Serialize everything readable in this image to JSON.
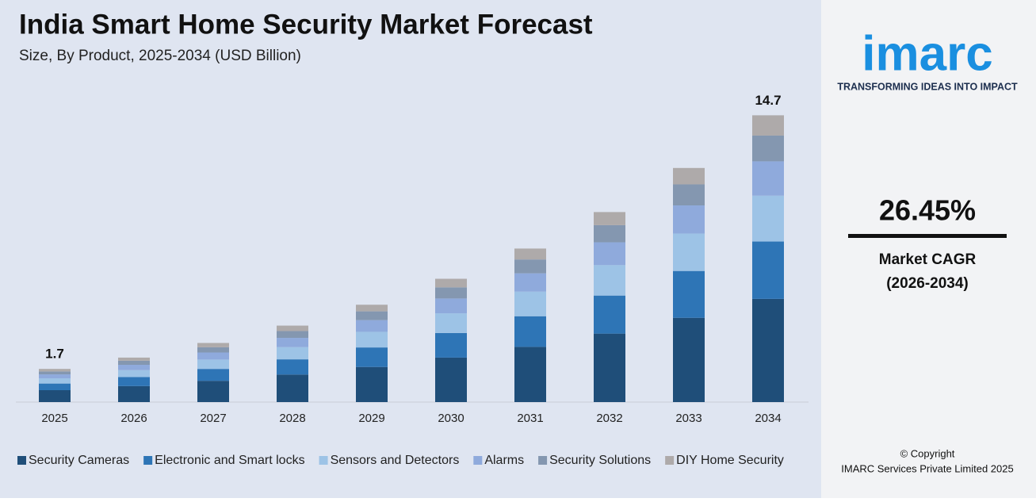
{
  "chart_data": {
    "type": "stacked_bar",
    "title": "India Smart Home Security Market Forecast",
    "subtitle": "Size, By Product, 2025-2034 (USD Billion)",
    "categories": [
      "2025",
      "2026",
      "2027",
      "2028",
      "2029",
      "2030",
      "2031",
      "2032",
      "2033",
      "2034"
    ],
    "series": [
      {
        "name": "Security Cameras",
        "color": "#1f4e79",
        "values": [
          0.61,
          0.82,
          1.09,
          1.41,
          1.8,
          2.28,
          2.83,
          3.51,
          4.32,
          5.29
        ]
      },
      {
        "name": "Electronic and Smart locks",
        "color": "#2e75b6",
        "values": [
          0.34,
          0.46,
          0.61,
          0.78,
          1.0,
          1.26,
          1.57,
          1.95,
          2.4,
          2.94
        ]
      },
      {
        "name": "Sensors and Detectors",
        "color": "#9dc3e6",
        "values": [
          0.27,
          0.36,
          0.48,
          0.63,
          0.8,
          1.01,
          1.26,
          1.56,
          1.92,
          2.35
        ]
      },
      {
        "name": "Alarms",
        "color": "#8faadc",
        "values": [
          0.2,
          0.27,
          0.36,
          0.47,
          0.6,
          0.76,
          0.94,
          1.17,
          1.44,
          1.76
        ]
      },
      {
        "name": "Security Solutions",
        "color": "#8497b0",
        "values": [
          0.15,
          0.21,
          0.27,
          0.35,
          0.45,
          0.57,
          0.71,
          0.88,
          1.08,
          1.32
        ]
      },
      {
        "name": "DIY Home Security",
        "color": "#aeaaaa",
        "values": [
          0.13,
          0.16,
          0.22,
          0.28,
          0.34,
          0.44,
          0.56,
          0.67,
          0.84,
          1.04
        ]
      }
    ],
    "totals": [
      1.7,
      null,
      null,
      null,
      null,
      null,
      null,
      null,
      null,
      14.7
    ],
    "ylim": [
      0,
      15
    ],
    "legend": "bottom"
  },
  "sidebar": {
    "logo": "imarc",
    "tagline": "TRANSFORMING IDEAS INTO IMPACT",
    "cagr": "26.45%",
    "cagr_label": "Market CAGR",
    "cagr_period": "(2026-2034)",
    "copyright": "© Copyright",
    "company": "IMARC Services Private Limited 2025"
  }
}
